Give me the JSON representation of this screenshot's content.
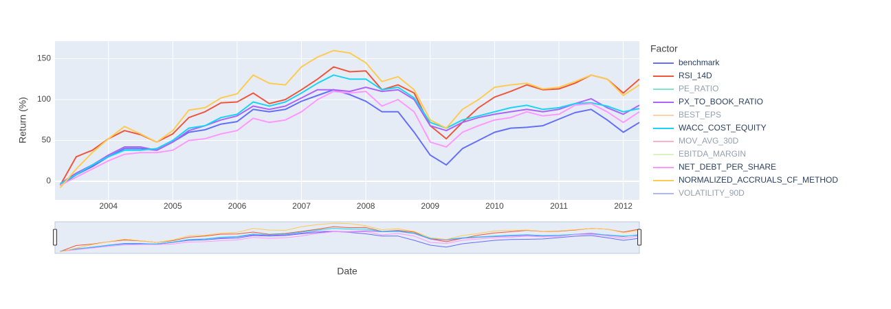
{
  "chart_data": {
    "type": "line",
    "x_label": "Date",
    "y_label": "Return (%)",
    "legend_title": "Factor",
    "legend_position": "right",
    "grid": true,
    "rangeslider": true,
    "x": [
      2003.25,
      2003.5,
      2003.75,
      2004,
      2004.25,
      2004.5,
      2004.75,
      2005,
      2005.25,
      2005.5,
      2005.75,
      2006,
      2006.25,
      2006.5,
      2006.75,
      2007,
      2007.25,
      2007.5,
      2007.75,
      2008,
      2008.25,
      2008.5,
      2008.75,
      2009,
      2009.25,
      2009.5,
      2009.75,
      2010,
      2010.25,
      2010.5,
      2010.75,
      2011,
      2011.25,
      2011.5,
      2011.75,
      2012,
      2012.25
    ],
    "xlim": [
      2003.17,
      2012.25
    ],
    "xticks": [
      2004,
      2005,
      2006,
      2007,
      2008,
      2009,
      2010,
      2011,
      2012
    ],
    "ylim": [
      -22.7,
      171.4
    ],
    "yticks": [
      0,
      50,
      100,
      150
    ],
    "series": [
      {
        "name": "benchmark",
        "color": "#636efa",
        "visible": true,
        "values": [
          -5,
          8,
          18,
          30,
          40,
          40,
          38,
          48,
          60,
          63,
          70,
          73,
          88,
          85,
          88,
          98,
          105,
          112,
          106,
          98,
          85,
          85,
          60,
          32,
          20,
          40,
          50,
          60,
          65,
          66,
          68,
          76,
          84,
          88,
          75,
          60,
          72
        ]
      },
      {
        "name": "RSI_14D",
        "color": "#EF553B",
        "visible": true,
        "values": [
          -5,
          30,
          38,
          52,
          62,
          57,
          48,
          58,
          78,
          85,
          96,
          97,
          108,
          95,
          100,
          112,
          125,
          140,
          134,
          135,
          112,
          118,
          108,
          68,
          52,
          72,
          90,
          103,
          110,
          118,
          112,
          113,
          120,
          130,
          125,
          108,
          125
        ]
      },
      {
        "name": "PE_RATIO",
        "color": "#00cc96",
        "visible": false
      },
      {
        "name": "PX_TO_BOOK_RATIO",
        "color": "#AB63FA",
        "visible": true,
        "values": [
          -3,
          10,
          20,
          32,
          42,
          42,
          38,
          48,
          62,
          68,
          75,
          80,
          92,
          88,
          92,
          102,
          112,
          112,
          110,
          115,
          110,
          112,
          100,
          68,
          62,
          72,
          78,
          82,
          85,
          88,
          85,
          88,
          95,
          101,
          90,
          82,
          93
        ]
      },
      {
        "name": "BEST_EPS",
        "color": "#FFA15A",
        "visible": false
      },
      {
        "name": "WACC_COST_EQUITY",
        "color": "#19d3f3",
        "visible": true,
        "values": [
          -3,
          8,
          20,
          30,
          38,
          38,
          40,
          50,
          65,
          68,
          78,
          82,
          97,
          92,
          97,
          108,
          120,
          130,
          125,
          125,
          112,
          115,
          102,
          72,
          65,
          75,
          80,
          85,
          90,
          93,
          88,
          90,
          95,
          96,
          92,
          85,
          89
        ]
      },
      {
        "name": "MOV_AVG_30D",
        "color": "#FF6692",
        "visible": false
      },
      {
        "name": "EBITDA_MARGIN",
        "color": "#B6E880",
        "visible": false
      },
      {
        "name": "NET_DEBT_PER_SHARE",
        "color": "#FF97FF",
        "visible": true,
        "values": [
          -5,
          5,
          15,
          25,
          33,
          35,
          35,
          38,
          50,
          52,
          58,
          62,
          77,
          72,
          75,
          85,
          100,
          110,
          108,
          110,
          92,
          100,
          85,
          48,
          42,
          60,
          68,
          75,
          78,
          85,
          80,
          82,
          93,
          95,
          85,
          72,
          85
        ]
      },
      {
        "name": "NORMALIZED_ACCRUALS_CF_METHOD",
        "color": "#FECB52",
        "visible": true,
        "values": [
          -8,
          15,
          35,
          52,
          67,
          58,
          48,
          62,
          87,
          90,
          102,
          107,
          130,
          120,
          118,
          140,
          152,
          160,
          157,
          145,
          122,
          128,
          112,
          75,
          65,
          88,
          100,
          115,
          118,
          120,
          113,
          115,
          122,
          130,
          125,
          105,
          118
        ]
      },
      {
        "name": "VOLATILITY_90D",
        "color": "#636efa",
        "visible": false
      }
    ]
  }
}
